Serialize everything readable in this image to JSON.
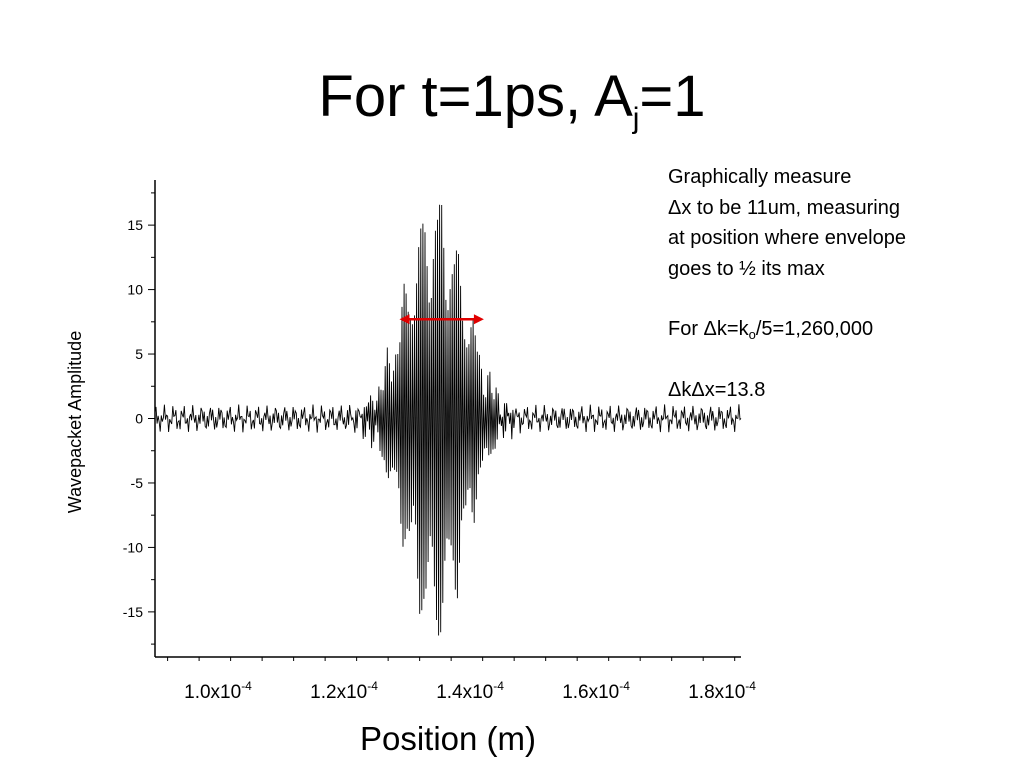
{
  "slide": {
    "title_main": "For t=1ps, A",
    "title_sub": "j",
    "title_end": "=1"
  },
  "notes": {
    "line1": "Graphically measure",
    "line2": "Δx to be 11um, measuring",
    "line3": "at position where envelope",
    "line4": "goes to ½ its max",
    "line5_a": "For Δk=k",
    "line5_sub": "o",
    "line5_b": "/5=1,260,000",
    "line6": "ΔkΔx=13.8"
  },
  "chart_data": {
    "type": "line",
    "xlabel": "Position (m)",
    "ylabel": "Wavepacket Amplitude",
    "xlim": [
      9e-05,
      0.000183
    ],
    "ylim": [
      -18.5,
      18.5
    ],
    "y_ticks": [
      "15",
      "10",
      "5",
      "0",
      "-5",
      "-10",
      "-15"
    ],
    "y_tick_values": [
      15,
      10,
      5,
      0,
      -5,
      -10,
      -15
    ],
    "x_ticks": [
      {
        "value": 0.0001,
        "base": "1.0x10",
        "exp": "-4"
      },
      {
        "value": 0.00012,
        "base": "1.2x10",
        "exp": "-4"
      },
      {
        "value": 0.00014,
        "base": "1.4x10",
        "exp": "-4"
      },
      {
        "value": 0.00016,
        "base": "1.6x10",
        "exp": "-4"
      },
      {
        "value": 0.00018,
        "base": "1.8x10",
        "exp": "-4"
      }
    ],
    "series": [
      {
        "color": "#000000",
        "envelope_center": 0.0001345,
        "envelope_peak": 17.2,
        "half_width": 5.5e-06,
        "noise_amplitude": 1.1,
        "samples": 560
      }
    ],
    "annotation": {
      "type": "double-arrow",
      "color": "#e00000",
      "x_start": 0.0001288,
      "x_end": 0.0001422,
      "y": 7.7
    }
  }
}
